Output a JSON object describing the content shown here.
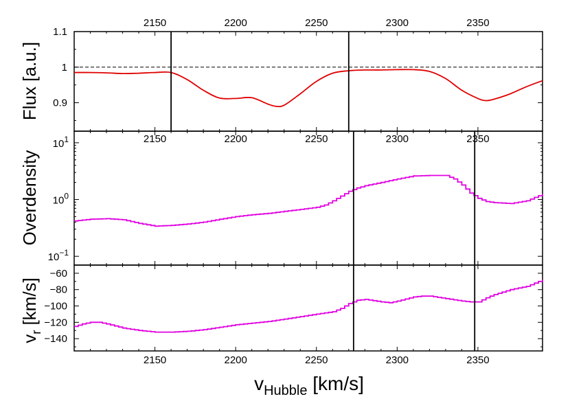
{
  "colors": {
    "flux_line": "#e00000",
    "series_line": "#e000e0",
    "marker_line": "#000000",
    "axes": "#000000"
  },
  "chart_data": [
    {
      "panel": "flux",
      "type": "line",
      "ylabel": "Flux [a.u.]",
      "xlabel": "",
      "xlim": [
        2100,
        2390
      ],
      "ylim": [
        0.82,
        1.1
      ],
      "y_scale": "linear",
      "xticks_top": [
        "2150",
        "2200",
        "2250",
        "2300",
        "2350"
      ],
      "xtick_values": [
        2150,
        2200,
        2250,
        2300,
        2350
      ],
      "yticks": [
        "0.9",
        "1",
        "1.1"
      ],
      "ytick_values": [
        0.9,
        1.0,
        1.1
      ],
      "reference_line": {
        "y": 1.0,
        "style": "dashed"
      },
      "vertical_markers": [
        2160,
        2270
      ],
      "series": [
        {
          "color": "#e00000",
          "x": [
            2100,
            2110,
            2120,
            2130,
            2140,
            2150,
            2160,
            2170,
            2180,
            2190,
            2200,
            2210,
            2220,
            2225,
            2230,
            2240,
            2250,
            2260,
            2270,
            2280,
            2290,
            2300,
            2310,
            2320,
            2330,
            2340,
            2350,
            2355,
            2360,
            2370,
            2380,
            2390
          ],
          "y": [
            0.985,
            0.985,
            0.984,
            0.982,
            0.983,
            0.985,
            0.985,
            0.965,
            0.935,
            0.913,
            0.912,
            0.914,
            0.896,
            0.89,
            0.893,
            0.925,
            0.96,
            0.983,
            0.99,
            0.992,
            0.992,
            0.993,
            0.993,
            0.988,
            0.968,
            0.935,
            0.912,
            0.906,
            0.91,
            0.925,
            0.945,
            0.962
          ]
        }
      ]
    },
    {
      "panel": "overdensity",
      "type": "line",
      "ylabel": "Overdensity",
      "xlabel": "",
      "xlim": [
        2100,
        2390
      ],
      "ylim": [
        0.07,
        16
      ],
      "y_scale": "log",
      "xticks_top": [
        "2150",
        "2200",
        "2250",
        "2300",
        "2350"
      ],
      "xtick_values": [
        2150,
        2200,
        2250,
        2300,
        2350
      ],
      "ytick_values": [
        0.1,
        1,
        10
      ],
      "ytick_base": "10",
      "ytick_exponents": [
        "−1",
        "0",
        "1"
      ],
      "vertical_markers": [
        2273,
        2348
      ],
      "series": [
        {
          "color": "#e000e0",
          "step": true,
          "x": [
            2100,
            2110,
            2120,
            2130,
            2140,
            2150,
            2160,
            2170,
            2180,
            2190,
            2200,
            2210,
            2220,
            2230,
            2240,
            2250,
            2255,
            2260,
            2265,
            2270,
            2275,
            2280,
            2290,
            2300,
            2310,
            2320,
            2330,
            2335,
            2340,
            2345,
            2350,
            2355,
            2360,
            2370,
            2380,
            2390
          ],
          "y": [
            0.42,
            0.45,
            0.46,
            0.44,
            0.38,
            0.34,
            0.35,
            0.37,
            0.4,
            0.45,
            0.5,
            0.54,
            0.57,
            0.62,
            0.67,
            0.73,
            0.8,
            0.95,
            1.15,
            1.4,
            1.6,
            1.75,
            2.0,
            2.3,
            2.6,
            2.65,
            2.65,
            2.3,
            1.8,
            1.3,
            1.05,
            0.92,
            0.88,
            0.85,
            0.95,
            1.25
          ]
        }
      ]
    },
    {
      "panel": "velocity",
      "type": "line",
      "ylabel_main": "v",
      "ylabel_sub": "r",
      "ylabel_rest": " [km/s]",
      "xlabel_main": "v",
      "xlabel_sub": "Hubble",
      "xlabel_rest": " [km/s]",
      "xlim": [
        2100,
        2390
      ],
      "ylim": [
        -155,
        -50
      ],
      "y_scale": "linear",
      "xticks": [
        "2150",
        "2200",
        "2250",
        "2300",
        "2350"
      ],
      "xtick_values": [
        2150,
        2200,
        2250,
        2300,
        2350
      ],
      "yticks": [
        "−140",
        "−120",
        "−100",
        "−80",
        "−60"
      ],
      "ytick_values": [
        -140,
        -120,
        -100,
        -80,
        -60
      ],
      "vertical_markers": [
        2273,
        2348
      ],
      "series": [
        {
          "color": "#e000e0",
          "step": true,
          "x": [
            2100,
            2105,
            2110,
            2115,
            2120,
            2130,
            2140,
            2150,
            2160,
            2170,
            2180,
            2190,
            2200,
            2210,
            2220,
            2230,
            2240,
            2250,
            2260,
            2265,
            2270,
            2275,
            2280,
            2290,
            2295,
            2300,
            2310,
            2315,
            2320,
            2330,
            2340,
            2345,
            2350,
            2355,
            2360,
            2370,
            2380,
            2390
          ],
          "y": [
            -125,
            -122,
            -120,
            -120,
            -122,
            -127,
            -130,
            -132,
            -132,
            -131,
            -129,
            -126,
            -123,
            -121,
            -119,
            -116,
            -113,
            -110,
            -107,
            -103,
            -97,
            -93,
            -92,
            -95,
            -96,
            -94,
            -89,
            -88,
            -88,
            -91,
            -94,
            -95,
            -95,
            -90,
            -86,
            -80,
            -76,
            -68
          ]
        }
      ]
    }
  ]
}
